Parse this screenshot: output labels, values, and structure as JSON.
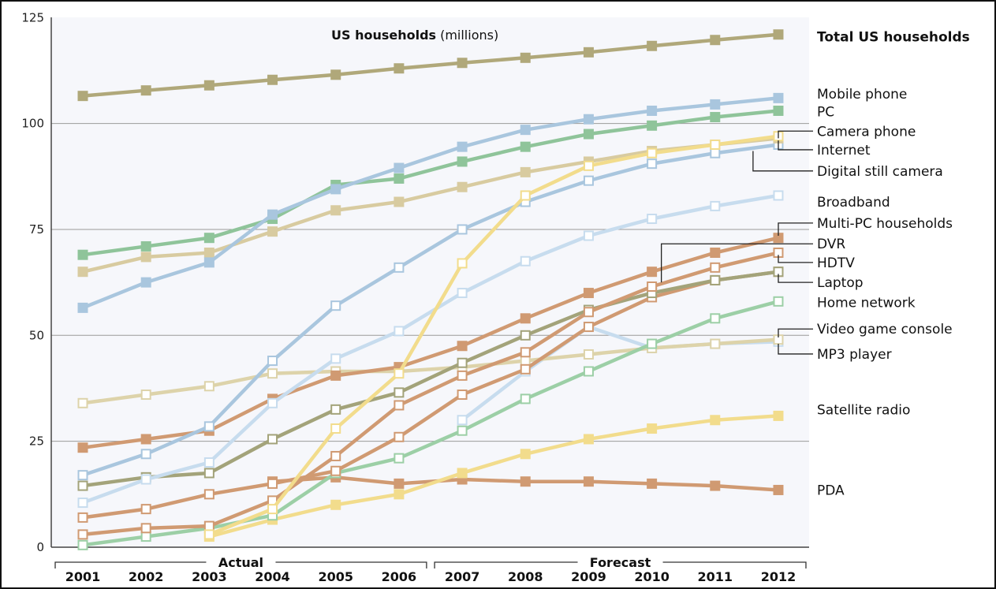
{
  "chart_data": {
    "type": "line",
    "title": "US households",
    "title_unit": "(millions)",
    "x": [
      "2001",
      "2002",
      "2003",
      "2004",
      "2005",
      "2006",
      "2007",
      "2008",
      "2009",
      "2010",
      "2011",
      "2012"
    ],
    "ylim": [
      0,
      125
    ],
    "y_ticks": [
      "0",
      "25",
      "50",
      "75",
      "100",
      "125"
    ],
    "grid": "horizontal",
    "legend": "right, labels at line ends",
    "periods": [
      {
        "label": "Actual",
        "from": "2001",
        "to": "2006"
      },
      {
        "label": "Forecast",
        "from": "2007",
        "to": "2012"
      }
    ],
    "series": [
      {
        "name": "Total US households",
        "color": "#b0a87a",
        "marker": "filled",
        "values": [
          106.5,
          107.8,
          109,
          110.3,
          111.5,
          113,
          114.3,
          115.5,
          116.8,
          118.3,
          119.7,
          121
        ]
      },
      {
        "name": "Mobile phone",
        "color": "#a9c6de",
        "marker": "filled",
        "values": [
          56.5,
          62.5,
          67.2,
          78.5,
          84.5,
          89.5,
          94.5,
          98.5,
          101,
          103,
          104.5,
          106
        ]
      },
      {
        "name": "PC",
        "color": "#8fc49a",
        "marker": "filled",
        "values": [
          69,
          71,
          73,
          77.5,
          85.5,
          87,
          91,
          94.5,
          97.5,
          99.5,
          101.5,
          103
        ]
      },
      {
        "name": "Camera phone",
        "color": "#f2dc8c",
        "marker": "open",
        "values": [
          null,
          null,
          3,
          9,
          28,
          41,
          67,
          83,
          90,
          93,
          95,
          97
        ]
      },
      {
        "name": "Internet",
        "color": "#d8cba0",
        "marker": "filled",
        "values": [
          65,
          68.5,
          69.5,
          74.5,
          79.5,
          81.5,
          85,
          88.5,
          91,
          93.5,
          95,
          96.5
        ]
      },
      {
        "name": "Digital still camera",
        "color": "#a9c6de",
        "marker": "open",
        "values": [
          17,
          22,
          28.5,
          44,
          57,
          66,
          75,
          81.5,
          86.5,
          90.5,
          93,
          95
        ]
      },
      {
        "name": "Broadband",
        "color": "#c7dcee",
        "marker": "open",
        "values": [
          10.5,
          16,
          20,
          34,
          44.5,
          51,
          60,
          67.5,
          73.5,
          77.5,
          80.5,
          83
        ]
      },
      {
        "name": "Multi-PC households",
        "color": "#d09a72",
        "marker": "filled",
        "values": [
          23.5,
          25.5,
          27.5,
          35,
          40.5,
          42.5,
          47.5,
          54,
          60,
          65,
          69.5,
          73
        ]
      },
      {
        "name": "DVR",
        "color": "#d09a72",
        "marker": "open",
        "values": [
          3,
          4.5,
          5,
          11,
          21.5,
          33.5,
          40.5,
          46,
          55.5,
          61.5,
          66,
          69.5
        ]
      },
      {
        "name": "HDTV",
        "color": "#a3a37a",
        "marker": "open",
        "values": [
          14.5,
          16.5,
          17.5,
          25.5,
          32.5,
          36.5,
          43.5,
          50,
          56,
          60,
          63,
          65
        ]
      },
      {
        "name": "Laptop",
        "color": "#d09a72",
        "marker": "open",
        "values": [
          7,
          9,
          12.5,
          15,
          18,
          26,
          36,
          42,
          52,
          59,
          63,
          65
        ]
      },
      {
        "name": "Home network",
        "color": "#9ccfa6",
        "marker": "open",
        "values": [
          0.5,
          2.5,
          4.5,
          7.5,
          17.5,
          21,
          27.5,
          35,
          41.5,
          48,
          54,
          58
        ]
      },
      {
        "name": "Video game console",
        "color": "#ddd3aa",
        "marker": "open",
        "values": [
          34,
          36,
          38,
          41,
          41.5,
          41.5,
          42.5,
          44,
          45.5,
          47,
          48,
          49
        ]
      },
      {
        "name": "MP3 player",
        "color": "#c7dcee",
        "marker": "open",
        "values": [
          null,
          null,
          null,
          null,
          null,
          null,
          30,
          41.5,
          52,
          47,
          48,
          48.5
        ]
      },
      {
        "name": "Satellite radio",
        "color": "#f2dc8c",
        "marker": "filled",
        "values": [
          null,
          null,
          2.5,
          6.5,
          10,
          12.5,
          17.5,
          22,
          25.5,
          28,
          30,
          31
        ]
      },
      {
        "name": "PDA",
        "color": "#d09a72",
        "marker": "filled",
        "values": [
          null,
          null,
          null,
          15.5,
          16.5,
          15,
          16,
          15.5,
          15.5,
          15,
          14.5,
          13.5
        ]
      }
    ],
    "right_labels": [
      {
        "text": "Total US households",
        "bold": true,
        "y": 120.5
      },
      {
        "text": "Mobile phone",
        "bold": false,
        "y": 107
      },
      {
        "text": "PC",
        "bold": false,
        "y": 102.8
      },
      {
        "text": "Camera phone",
        "bold": false,
        "y": 98.2
      },
      {
        "text": "Internet",
        "bold": false,
        "y": 93.8
      },
      {
        "text": "Digital still camera",
        "bold": false,
        "y": 88.8
      },
      {
        "text": "Broadband",
        "bold": false,
        "y": 81.5
      },
      {
        "text": "Multi-PC households",
        "bold": false,
        "y": 76.5
      },
      {
        "text": "DVR",
        "bold": false,
        "y": 71.6
      },
      {
        "text": "HDTV",
        "bold": false,
        "y": 67.2
      },
      {
        "text": "Laptop",
        "bold": false,
        "y": 62.5
      },
      {
        "text": "Home network",
        "bold": false,
        "y": 57.8
      },
      {
        "text": "Video game console",
        "bold": false,
        "y": 51.5
      },
      {
        "text": "MP3 player",
        "bold": false,
        "y": 45.6
      },
      {
        "text": "Satellite radio",
        "bold": false,
        "y": 32.5
      },
      {
        "text": "PDA",
        "bold": false,
        "y": 13.5
      }
    ],
    "leaders": [
      {
        "label": "Camera phone",
        "from_x": "2012",
        "from_y": 96.5,
        "to_y": 98.2
      },
      {
        "label": "Internet",
        "from_x": "2012",
        "from_y": 96,
        "to_y": 93.8
      },
      {
        "label": "Digital still camera",
        "from_x": "2011.6",
        "from_y": 93.5,
        "to_y": 88.8
      },
      {
        "label": "Multi-PC households",
        "from_x": "2012",
        "from_y": 73.5,
        "to_y": 76.5
      },
      {
        "label": "DVR",
        "from_x": "2010.15",
        "from_y": 62.5,
        "to_y": 71.6
      },
      {
        "label": "HDTV",
        "from_x": "2012",
        "from_y": 69,
        "to_y": 67.2
      },
      {
        "label": "Laptop",
        "from_x": "2012",
        "from_y": 64.5,
        "to_y": 62.5
      },
      {
        "label": "Video game console",
        "from_x": "2012",
        "from_y": 49.5,
        "to_y": 51.5
      },
      {
        "label": "MP3 player",
        "from_x": "2012",
        "from_y": 48,
        "to_y": 45.6
      }
    ]
  }
}
